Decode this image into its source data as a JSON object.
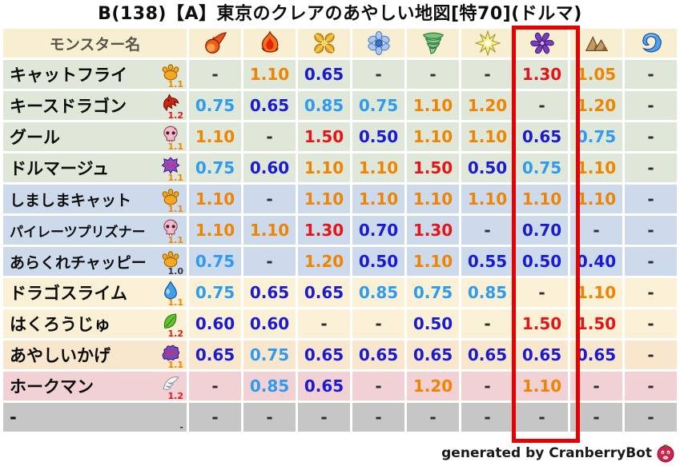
{
  "title": "B(138)【A】東京のクレアのあやしい地図[特70](ドルマ)",
  "table": {
    "name_header": "モンスター名",
    "element_columns": [
      {
        "icon": "fireball-icon"
      },
      {
        "icon": "flame-icon"
      },
      {
        "icon": "burst-icon"
      },
      {
        "icon": "snowflake-icon"
      },
      {
        "icon": "tornado-icon"
      },
      {
        "icon": "spark-icon"
      },
      {
        "icon": "pinwheel-icon"
      },
      {
        "icon": "mountain-icon"
      },
      {
        "icon": "wave-icon"
      }
    ]
  },
  "highlight": {
    "element_column_index": 6,
    "color": "#e60000"
  },
  "palette": {
    "header_bg": "#f8efd3",
    "row_green": "#dfe7d8",
    "row_blue": "#ccdaeb",
    "row_cream": "#faf0d5",
    "row_peach": "#f8e7cd",
    "row_pink": "#f2d1d5",
    "row_gray": "#c6c6c6",
    "value_dark_blue": "#1a1ad0",
    "value_light_blue": "#2e9bf0",
    "value_orange": "#f08300",
    "value_red": "#e51515",
    "dash": "#2e2e2e",
    "mult_orange": "#f08300",
    "mult_red": "#e51515",
    "mult_black": "#333333"
  },
  "chart_data": {
    "type": "table",
    "title": "B(138)【A】東京のクレアのあやしい地図[特70](ドルマ)",
    "columns": [
      "fireball",
      "flame",
      "burst",
      "snowflake",
      "tornado",
      "spark",
      "pinwheel",
      "mountain",
      "wave"
    ],
    "highlighted_column": "pinwheel",
    "rows": [
      {
        "name": "キャットフライ",
        "type_icon": "paw-icon",
        "multiplier": "1.1",
        "multiplier_color": "orange",
        "row_color": "row_green",
        "values": [
          "-",
          "1.10",
          "0.65",
          "-",
          "-",
          "-",
          "1.30",
          "1.05",
          "-"
        ]
      },
      {
        "name": "キースドラゴン",
        "type_icon": "dragon-icon",
        "multiplier": "1.2",
        "multiplier_color": "red",
        "row_color": "row_green",
        "values": [
          "0.75",
          "0.65",
          "0.85",
          "0.75",
          "1.10",
          "1.20",
          "-",
          "1.20",
          "-"
        ]
      },
      {
        "name": "グール",
        "type_icon": "skull-icon",
        "multiplier": "1.1",
        "multiplier_color": "orange",
        "row_color": "row_green",
        "values": [
          "1.10",
          "-",
          "1.50",
          "0.50",
          "1.10",
          "1.10",
          "0.65",
          "0.75",
          "-"
        ]
      },
      {
        "name": "ドルマージュ",
        "type_icon": "demon-icon",
        "multiplier": "1.1",
        "multiplier_color": "orange",
        "row_color": "row_green",
        "values": [
          "0.75",
          "0.60",
          "1.10",
          "1.10",
          "1.50",
          "0.50",
          "0.75",
          "1.10",
          "-"
        ]
      },
      {
        "name": "しましまキャット",
        "type_icon": "paw-icon",
        "multiplier": "1.1",
        "multiplier_color": "orange",
        "row_color": "row_blue",
        "values": [
          "1.10",
          "-",
          "1.10",
          "1.10",
          "1.10",
          "1.10",
          "1.10",
          "1.10",
          "-"
        ]
      },
      {
        "name": "パイレーツプリズナー",
        "type_icon": "skull-icon",
        "multiplier": "1.1",
        "multiplier_color": "orange",
        "row_color": "row_blue",
        "values": [
          "1.10",
          "1.10",
          "1.30",
          "0.70",
          "1.30",
          "-",
          "0.70",
          "-",
          "-"
        ]
      },
      {
        "name": "あらくれチャッピー",
        "type_icon": "paw-icon",
        "multiplier": "1.0",
        "multiplier_color": "black",
        "row_color": "row_blue",
        "values": [
          "0.75",
          "-",
          "1.20",
          "0.50",
          "1.10",
          "0.55",
          "0.50",
          "0.40",
          "-"
        ]
      },
      {
        "name": "ドラゴスライム",
        "type_icon": "slime-icon",
        "multiplier": "1.1",
        "multiplier_color": "orange",
        "row_color": "row_cream",
        "values": [
          "0.75",
          "0.65",
          "0.65",
          "0.85",
          "0.75",
          "0.85",
          "-",
          "1.10",
          "-"
        ]
      },
      {
        "name": "はくろうじゅ",
        "type_icon": "leaf-icon",
        "multiplier": "1.2",
        "multiplier_color": "red",
        "row_color": "row_cream",
        "values": [
          "0.60",
          "0.60",
          "-",
          "-",
          "0.50",
          "-",
          "1.50",
          "1.50",
          "-"
        ]
      },
      {
        "name": "あやしいかげ",
        "type_icon": "shadow-icon",
        "multiplier": "1.1",
        "multiplier_color": "orange",
        "row_color": "row_peach",
        "values": [
          "0.65",
          "0.75",
          "0.65",
          "0.65",
          "0.65",
          "0.65",
          "0.65",
          "0.65",
          "-"
        ]
      },
      {
        "name": "ホークマン",
        "type_icon": "wing-icon",
        "multiplier": "1.2",
        "multiplier_color": "red",
        "row_color": "row_pink",
        "values": [
          "-",
          "0.85",
          "0.65",
          "-",
          "1.20",
          "-",
          "1.10",
          "-",
          "-"
        ]
      },
      {
        "name": "-",
        "type_icon": null,
        "multiplier": "-",
        "multiplier_color": "black",
        "row_color": "row_gray",
        "values": [
          "-",
          "-",
          "-",
          "-",
          "-",
          "-",
          "-",
          "-",
          "-"
        ]
      }
    ]
  },
  "footer": {
    "credit": "generated by CranberryBot",
    "icon": "cranberry-icon"
  }
}
